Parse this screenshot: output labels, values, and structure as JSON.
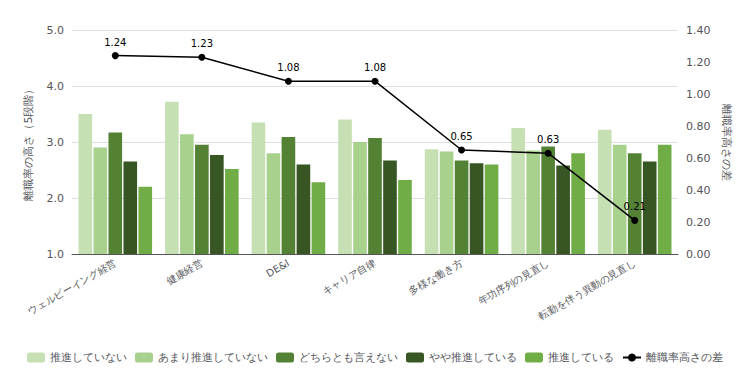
{
  "chart_data": {
    "type": "bar",
    "categories": [
      "ウェルビーイング経営",
      "健康経営",
      "DE&I",
      "キャリア自律",
      "多様な働き方",
      "年功序列の見直し",
      "転勤を伴う異動の見直し"
    ],
    "series": [
      {
        "name": "推進していない",
        "color": "#c6e0b4",
        "values": [
          3.5,
          3.72,
          3.35,
          3.4,
          2.87,
          3.25,
          3.22
        ]
      },
      {
        "name": "あまり推進していない",
        "color": "#a9d18e",
        "values": [
          2.9,
          3.14,
          2.8,
          3.0,
          2.83,
          2.85,
          2.95
        ]
      },
      {
        "name": "どちらとも言えない",
        "color": "#548235",
        "values": [
          3.17,
          2.95,
          3.09,
          3.07,
          2.67,
          2.92,
          2.8
        ]
      },
      {
        "name": "やや推進している",
        "color": "#375623",
        "values": [
          2.65,
          2.77,
          2.6,
          2.67,
          2.62,
          2.58,
          2.65
        ]
      },
      {
        "name": "推進している",
        "color": "#70ad47",
        "values": [
          2.2,
          2.52,
          2.28,
          2.32,
          2.6,
          2.8,
          2.95
        ]
      },
      {
        "name": "離職率高さの差",
        "type": "line",
        "axis": "y2",
        "color": "#000000",
        "marker": "circle",
        "data_labels": true,
        "values": [
          1.24,
          1.23,
          1.08,
          1.08,
          0.65,
          0.63,
          0.21
        ]
      }
    ],
    "ylabel": "離職率の高さ（5段階）",
    "y2label": "離職率高さの差",
    "ylim": [
      1.0,
      5.0
    ],
    "yticks": [
      {
        "value": 1,
        "label": "1.0"
      },
      {
        "value": 2,
        "label": "2.0"
      },
      {
        "value": 3,
        "label": "3.0"
      },
      {
        "value": 4,
        "label": "4.0"
      },
      {
        "value": 5,
        "label": "5.0"
      }
    ],
    "y2lim": [
      0.0,
      1.4
    ],
    "y2ticks": [
      {
        "value": 0,
        "label": "0.00"
      },
      {
        "value": 0.2,
        "label": "0.20"
      },
      {
        "value": 0.4,
        "label": "0.40"
      },
      {
        "value": 0.6,
        "label": "0.60"
      },
      {
        "value": 0.8,
        "label": "0.80"
      },
      {
        "value": 1.0,
        "label": "1.00"
      },
      {
        "value": 1.2,
        "label": "1.20"
      },
      {
        "value": 1.4,
        "label": "1.40"
      }
    ],
    "grid": true,
    "legend": "bottom"
  }
}
